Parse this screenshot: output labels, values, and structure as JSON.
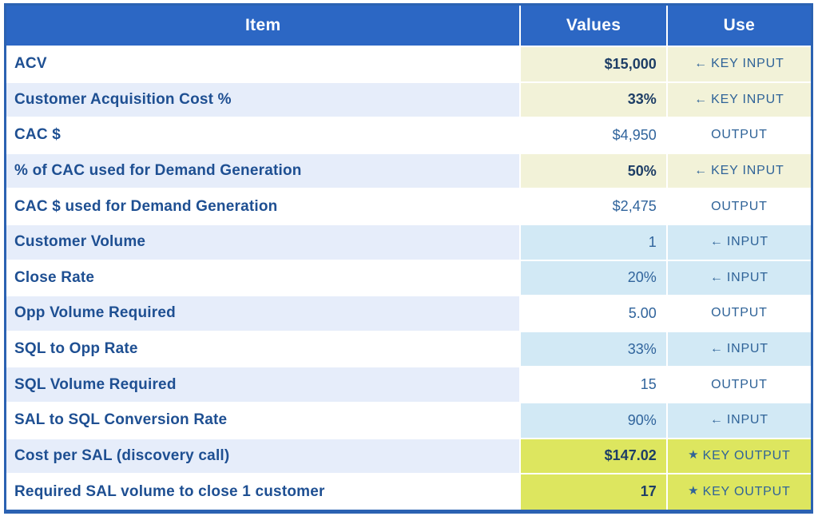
{
  "table": {
    "columns": [
      "Item",
      "Values",
      "Use"
    ],
    "rows": [
      {
        "item": "ACV",
        "value": "$15,000",
        "use_label": "KEY INPUT",
        "use_type": "key_input",
        "icon": "←",
        "icon_name": "arrow-left-icon"
      },
      {
        "item": "Customer Acquisition Cost %",
        "value": "33%",
        "use_label": "KEY INPUT",
        "use_type": "key_input",
        "icon": "←",
        "icon_name": "arrow-left-icon"
      },
      {
        "item": "CAC $",
        "value": "$4,950",
        "use_label": "OUTPUT",
        "use_type": "output",
        "icon": "",
        "icon_name": ""
      },
      {
        "item": "% of CAC used for Demand Generation",
        "value": "50%",
        "use_label": "KEY INPUT",
        "use_type": "key_input",
        "icon": "←",
        "icon_name": "arrow-left-icon"
      },
      {
        "item": "CAC $ used for Demand Generation",
        "value": "$2,475",
        "use_label": "OUTPUT",
        "use_type": "output",
        "icon": "",
        "icon_name": ""
      },
      {
        "item": "Customer Volume",
        "value": "1",
        "use_label": "INPUT",
        "use_type": "input",
        "icon": "←",
        "icon_name": "arrow-left-icon"
      },
      {
        "item": "Close Rate",
        "value": "20%",
        "use_label": "INPUT",
        "use_type": "input",
        "icon": "←",
        "icon_name": "arrow-left-icon"
      },
      {
        "item": "Opp Volume Required",
        "value": "5.00",
        "use_label": "OUTPUT",
        "use_type": "output",
        "icon": "",
        "icon_name": ""
      },
      {
        "item": "SQL to Opp Rate",
        "value": "33%",
        "use_label": "INPUT",
        "use_type": "input",
        "icon": "←",
        "icon_name": "arrow-left-icon"
      },
      {
        "item": "SQL Volume Required",
        "value": "15",
        "use_label": "OUTPUT",
        "use_type": "output",
        "icon": "",
        "icon_name": ""
      },
      {
        "item": "SAL to SQL Conversion Rate",
        "value": "90%",
        "use_label": "INPUT",
        "use_type": "input",
        "icon": "←",
        "icon_name": "arrow-left-icon"
      },
      {
        "item": "Cost per SAL (discovery call)",
        "value": "$147.02",
        "use_label": "KEY OUTPUT",
        "use_type": "key_output",
        "icon": "★",
        "icon_name": "star-icon"
      },
      {
        "item": "Required SAL volume to close 1 customer",
        "value": "17",
        "use_label": "KEY OUTPUT",
        "use_type": "key_output",
        "icon": "★",
        "icon_name": "star-icon"
      }
    ]
  },
  "colors": {
    "header-bg": "#2c67c4",
    "header-text": "#ffffff",
    "border-blue": "#2b62b2",
    "alt-row-bg": "#e6edfa",
    "key-input-bg": "#f2f2d8",
    "input-bg": "#d2e9f5",
    "key-output-bg": "#dde65f",
    "item-text": "#1e4f92",
    "value-text": "#30649c",
    "use-text": "#2f6398",
    "bold-value-text": "#1e3e66"
  }
}
